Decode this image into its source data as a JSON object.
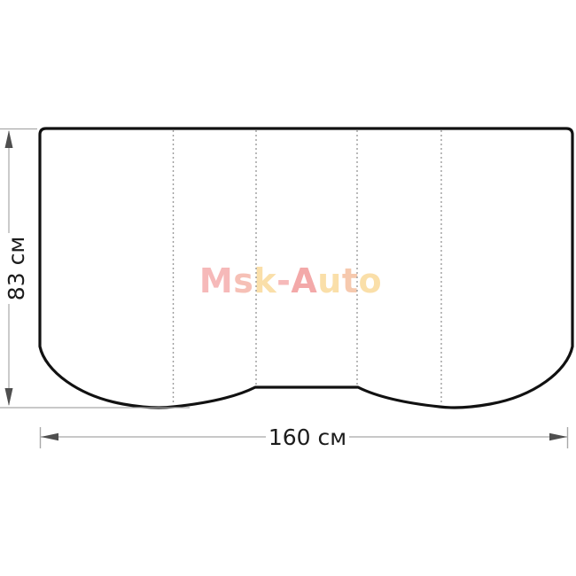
{
  "measurements": {
    "height_label": "83 см",
    "width_label": "160 см"
  },
  "watermark": {
    "text": "Msk-Auto",
    "letters": [
      {
        "ch": "M",
        "color": "#f6b9b9"
      },
      {
        "ch": "s",
        "color": "#f6c0b6"
      },
      {
        "ch": "k",
        "color": "#fadfa9"
      },
      {
        "ch": "-",
        "color": "#f6b9b9"
      },
      {
        "ch": "A",
        "color": "#f3a9a9"
      },
      {
        "ch": "u",
        "color": "#fadfa9"
      },
      {
        "ch": "t",
        "color": "#f6c9ae"
      },
      {
        "ch": "o",
        "color": "#fadfa9"
      }
    ]
  },
  "colors": {
    "outline": "#111111",
    "fold_line": "#9c9c9c",
    "dimension_line": "#a8a8a8",
    "arrow": "#4f4f4f",
    "label_text": "#1c1c1c",
    "background": "#ffffff"
  },
  "structure": {
    "panel_fold_lines": 4,
    "panels": 5
  }
}
